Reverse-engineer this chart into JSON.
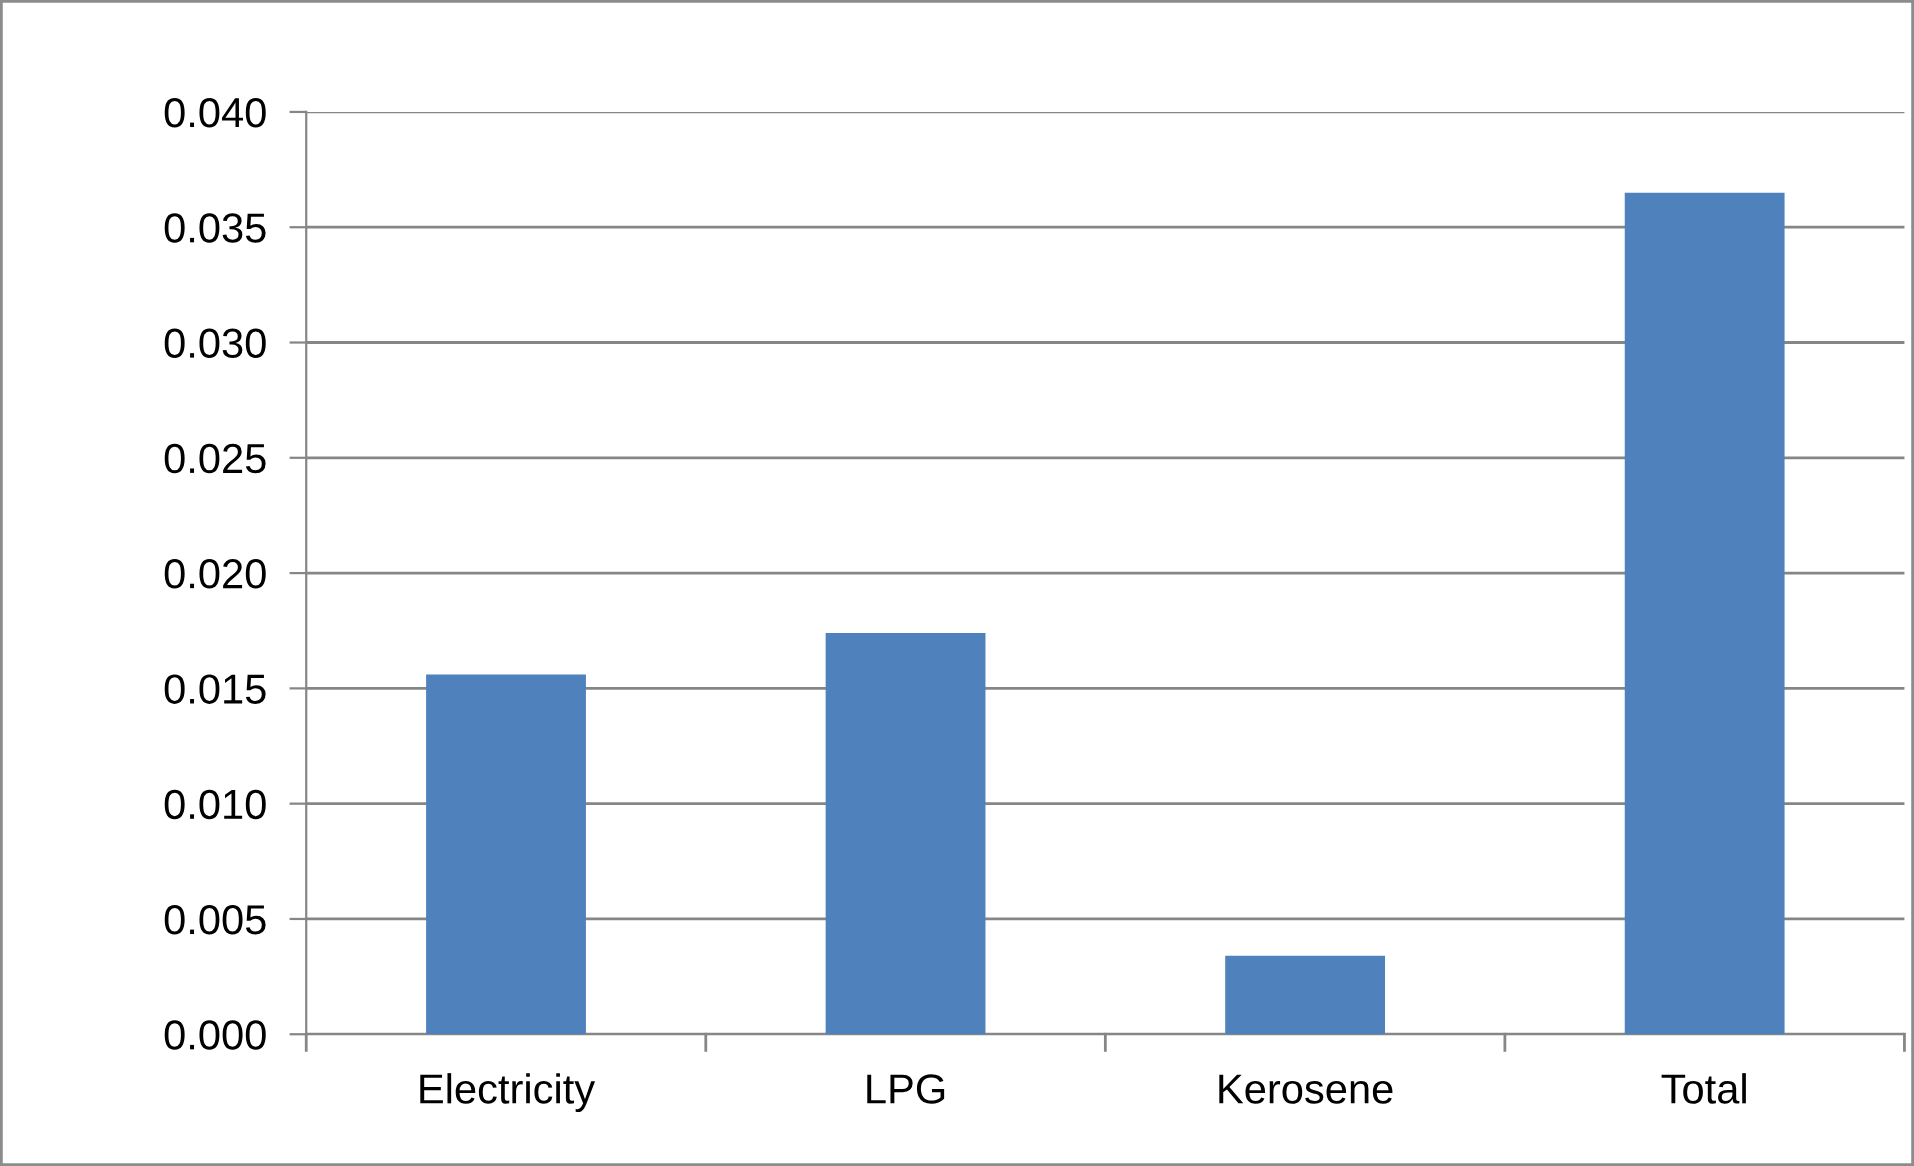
{
  "chart_data": {
    "type": "bar",
    "categories": [
      "Electricity",
      "LPG",
      "Kerosene",
      "Total"
    ],
    "values": [
      0.0156,
      0.0174,
      0.0034,
      0.0365
    ],
    "color": "#4f81bd",
    "ylim": [
      0,
      0.04
    ],
    "yticks": [
      {
        "value": 0,
        "label": "0.000"
      },
      {
        "value": 0.005,
        "label": "0.005"
      },
      {
        "value": 0.01,
        "label": "0.010"
      },
      {
        "value": 0.015,
        "label": "0.015"
      },
      {
        "value": 0.02,
        "label": "0.020"
      },
      {
        "value": 0.025,
        "label": "0.025"
      },
      {
        "value": 0.03,
        "label": "0.030"
      },
      {
        "value": 0.035,
        "label": "0.035"
      },
      {
        "value": 0.04,
        "label": "0.040"
      }
    ],
    "grid": "y",
    "legend": false
  }
}
